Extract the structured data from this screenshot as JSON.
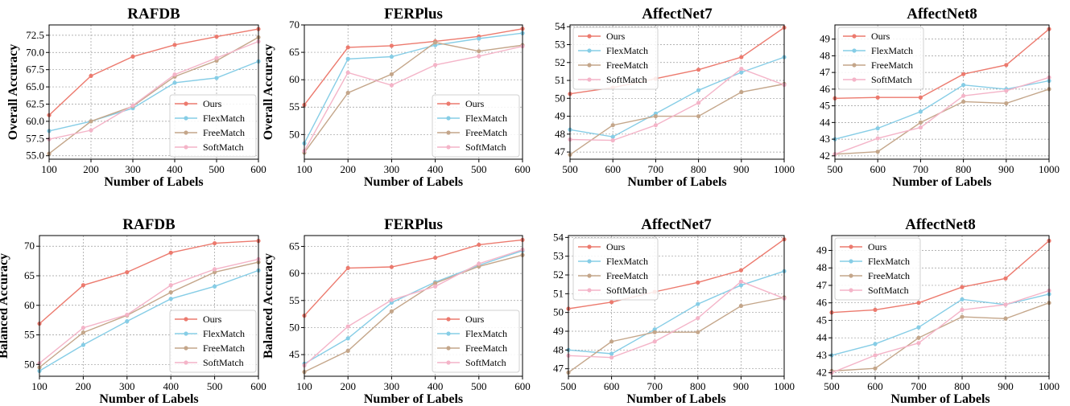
{
  "colors": {
    "Ours": "#ec7a6e",
    "FlexMatch": "#86cde6",
    "FreeMatch": "#c4a68a",
    "SoftMatch": "#f4b4c8"
  },
  "chart_data": [
    {
      "type": "line",
      "title": "RAFDB",
      "xlabel": "Number of Labels",
      "ylabel": "Overall Accuracy",
      "x": [
        100,
        200,
        300,
        400,
        500,
        600
      ],
      "xticks": [
        "100",
        "200",
        "300",
        "400",
        "500",
        "600"
      ],
      "xlim": [
        100,
        600
      ],
      "yticks": [
        "55.0",
        "57.5",
        "60.0",
        "62.5",
        "65.0",
        "67.5",
        "70.0",
        "72.5"
      ],
      "ylim": [
        54.5,
        74.0
      ],
      "grid": true,
      "legend_position": "lower-right",
      "series": [
        {
          "name": "Ours",
          "values": [
            60.9,
            66.6,
            69.4,
            71.1,
            72.3,
            73.4
          ]
        },
        {
          "name": "FlexMatch",
          "values": [
            58.6,
            60.0,
            61.9,
            65.6,
            66.3,
            68.7
          ]
        },
        {
          "name": "FreeMatch",
          "values": [
            55.3,
            60.0,
            62.2,
            66.5,
            68.8,
            72.2
          ]
        },
        {
          "name": "SoftMatch",
          "values": [
            57.4,
            58.7,
            62.3,
            66.8,
            69.2,
            71.6
          ]
        }
      ]
    },
    {
      "type": "line",
      "title": "FERPlus",
      "xlabel": "Number of Labels",
      "ylabel": "Overall Accuracy",
      "x": [
        100,
        200,
        300,
        400,
        500,
        600
      ],
      "xticks": [
        "100",
        "200",
        "300",
        "400",
        "500",
        "600"
      ],
      "xlim": [
        100,
        600
      ],
      "yticks": [
        "50",
        "55",
        "60",
        "65",
        "70"
      ],
      "ylim": [
        45.5,
        70.0
      ],
      "grid": true,
      "legend_position": "lower-right",
      "series": [
        {
          "name": "Ours",
          "values": [
            55.4,
            65.9,
            66.2,
            67.0,
            67.9,
            69.3
          ]
        },
        {
          "name": "FlexMatch",
          "values": [
            48.4,
            63.8,
            64.2,
            66.3,
            67.5,
            68.5
          ]
        },
        {
          "name": "FreeMatch",
          "values": [
            46.7,
            57.6,
            61.0,
            66.8,
            65.2,
            66.3
          ]
        },
        {
          "name": "SoftMatch",
          "values": [
            47.0,
            61.3,
            59.0,
            62.7,
            64.3,
            66.1
          ]
        }
      ]
    },
    {
      "type": "line",
      "title": "AffectNet7",
      "xlabel": "Number of Labels",
      "ylabel": "",
      "x": [
        500,
        600,
        700,
        800,
        900,
        1000
      ],
      "xticks": [
        "500",
        "600",
        "700",
        "800",
        "900",
        "1000"
      ],
      "xlim": [
        500,
        1000
      ],
      "yticks": [
        "47",
        "48",
        "49",
        "50",
        "51",
        "52",
        "53",
        "54"
      ],
      "ylim": [
        46.6,
        54.1
      ],
      "grid": true,
      "legend_position": "upper-left",
      "series": [
        {
          "name": "Ours",
          "values": [
            50.25,
            50.6,
            51.1,
            51.6,
            52.3,
            53.95
          ]
        },
        {
          "name": "FlexMatch",
          "values": [
            48.25,
            47.85,
            49.15,
            50.45,
            51.45,
            52.3
          ]
        },
        {
          "name": "FreeMatch",
          "values": [
            46.85,
            48.5,
            49.0,
            49.0,
            50.35,
            50.8
          ]
        },
        {
          "name": "SoftMatch",
          "values": [
            47.7,
            47.65,
            48.5,
            49.75,
            51.65,
            50.75
          ]
        }
      ]
    },
    {
      "type": "line",
      "title": "AffectNet8",
      "xlabel": "Number of Labels",
      "ylabel": "",
      "x": [
        500,
        600,
        700,
        800,
        900,
        1000
      ],
      "xticks": [
        "500",
        "600",
        "700",
        "800",
        "900",
        "1000"
      ],
      "xlim": [
        500,
        1000
      ],
      "yticks": [
        "42",
        "43",
        "44",
        "45",
        "46",
        "47",
        "48",
        "49"
      ],
      "ylim": [
        41.8,
        49.85
      ],
      "grid": true,
      "legend_position": "upper-left",
      "series": [
        {
          "name": "Ours",
          "values": [
            45.45,
            45.5,
            45.5,
            46.9,
            47.45,
            49.6
          ]
        },
        {
          "name": "FlexMatch",
          "values": [
            43.0,
            43.65,
            44.65,
            46.25,
            46.0,
            46.5
          ]
        },
        {
          "name": "FreeMatch",
          "values": [
            42.1,
            42.25,
            44.0,
            45.25,
            45.15,
            46.0
          ]
        },
        {
          "name": "SoftMatch",
          "values": [
            42.1,
            43.05,
            43.7,
            45.6,
            45.9,
            46.7
          ]
        }
      ]
    },
    {
      "type": "line",
      "title": "RAFDB",
      "xlabel": "Number of Labels",
      "ylabel": "Balanced Accuracy",
      "x": [
        100,
        200,
        300,
        400,
        500,
        600
      ],
      "xticks": [
        "100",
        "200",
        "300",
        "400",
        "500",
        "600"
      ],
      "xlim": [
        100,
        600
      ],
      "yticks": [
        "50",
        "55",
        "60",
        "65",
        "70"
      ],
      "ylim": [
        48.0,
        71.8
      ],
      "grid": true,
      "legend_position": "lower-right",
      "series": [
        {
          "name": "Ours",
          "values": [
            56.9,
            63.4,
            65.6,
            68.9,
            70.5,
            70.9
          ]
        },
        {
          "name": "FlexMatch",
          "values": [
            48.9,
            53.3,
            57.3,
            61.1,
            63.2,
            65.9
          ]
        },
        {
          "name": "FreeMatch",
          "values": [
            49.5,
            55.4,
            58.3,
            62.2,
            65.6,
            67.3
          ]
        },
        {
          "name": "SoftMatch",
          "values": [
            50.2,
            56.2,
            58.4,
            63.4,
            66.1,
            67.8
          ]
        }
      ]
    },
    {
      "type": "line",
      "title": "FERPlus",
      "xlabel": "Number of Labels",
      "ylabel": "Balanced Accuracy",
      "x": [
        100,
        200,
        300,
        400,
        500,
        600
      ],
      "xticks": [
        "100",
        "200",
        "300",
        "400",
        "500",
        "600"
      ],
      "xlim": [
        100,
        600
      ],
      "yticks": [
        "45",
        "50",
        "55",
        "60",
        "65"
      ],
      "ylim": [
        41.0,
        67.0
      ],
      "grid": true,
      "legend_position": "lower-right",
      "series": [
        {
          "name": "Ours",
          "values": [
            52.2,
            61.0,
            61.2,
            62.9,
            65.3,
            66.2
          ]
        },
        {
          "name": "FlexMatch",
          "values": [
            43.3,
            48.0,
            54.6,
            58.4,
            61.5,
            64.2
          ]
        },
        {
          "name": "FreeMatch",
          "values": [
            41.8,
            45.7,
            53.0,
            58.2,
            61.3,
            63.4
          ]
        },
        {
          "name": "SoftMatch",
          "values": [
            43.0,
            50.2,
            55.1,
            57.6,
            61.8,
            64.4
          ]
        }
      ]
    },
    {
      "type": "line",
      "title": "AffectNet7",
      "xlabel": "Number of Labels",
      "ylabel": "",
      "x": [
        500,
        600,
        700,
        800,
        900,
        1000
      ],
      "xticks": [
        "500",
        "600",
        "700",
        "800",
        "900",
        "1000"
      ],
      "xlim": [
        500,
        1000
      ],
      "yticks": [
        "47",
        "48",
        "49",
        "50",
        "51",
        "52",
        "53",
        "54"
      ],
      "ylim": [
        46.6,
        54.1
      ],
      "grid": true,
      "legend_position": "upper-left",
      "series": [
        {
          "name": "Ours",
          "values": [
            50.2,
            50.55,
            51.1,
            51.6,
            52.25,
            53.9
          ]
        },
        {
          "name": "FlexMatch",
          "values": [
            48.0,
            47.8,
            49.1,
            50.45,
            51.45,
            52.2
          ]
        },
        {
          "name": "FreeMatch",
          "values": [
            46.8,
            48.45,
            48.95,
            48.95,
            50.35,
            50.8
          ]
        },
        {
          "name": "SoftMatch",
          "values": [
            47.7,
            47.6,
            48.45,
            49.7,
            51.65,
            50.75
          ]
        }
      ]
    },
    {
      "type": "line",
      "title": "AffectNet8",
      "xlabel": "Number of Labels",
      "ylabel": "",
      "x": [
        500,
        600,
        700,
        800,
        900,
        1000
      ],
      "xticks": [
        "500",
        "600",
        "700",
        "800",
        "900",
        "1000"
      ],
      "xlim": [
        500,
        1000
      ],
      "yticks": [
        "42",
        "43",
        "44",
        "45",
        "46",
        "47",
        "48",
        "49"
      ],
      "ylim": [
        41.8,
        49.85
      ],
      "grid": true,
      "legend_position": "upper-left",
      "series": [
        {
          "name": "Ours",
          "values": [
            45.45,
            45.6,
            46.0,
            46.9,
            47.4,
            49.55
          ]
        },
        {
          "name": "FlexMatch",
          "values": [
            43.0,
            43.65,
            44.6,
            46.2,
            45.9,
            46.5
          ]
        },
        {
          "name": "FreeMatch",
          "values": [
            42.1,
            42.25,
            44.0,
            45.2,
            45.1,
            46.0
          ]
        },
        {
          "name": "SoftMatch",
          "values": [
            42.0,
            43.0,
            43.7,
            45.6,
            45.9,
            46.7
          ]
        }
      ]
    }
  ]
}
